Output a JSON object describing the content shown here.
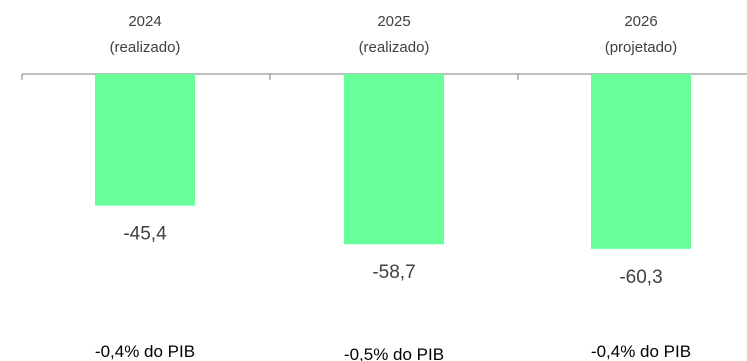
{
  "chart_data": {
    "type": "bar",
    "categories": [
      {
        "line1": "2024",
        "line2": "(realizado)"
      },
      {
        "line1": "2025",
        "line2": "(realizado)"
      },
      {
        "line1": "2026",
        "line2": "(projetado)"
      }
    ],
    "values": [
      -45.4,
      -58.7,
      -60.3
    ],
    "value_labels": [
      "-45,4",
      "-58,7",
      "-60,3"
    ],
    "pib_labels": [
      "-0,4% do PIB",
      "-0,5% do PIB",
      "-0,4% do PIB"
    ],
    "ylim": [
      -65,
      0
    ],
    "grid": false,
    "legend": "none",
    "bar_color": "#66ff99",
    "axis_color": "#7f7f7f",
    "title": "",
    "xlabel": "",
    "ylabel": ""
  }
}
